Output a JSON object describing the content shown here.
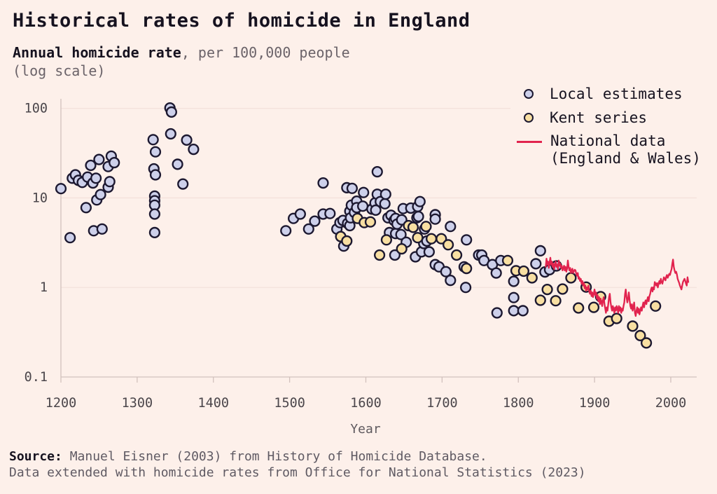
{
  "title": "Historical rates of homicide in England",
  "subtitle": {
    "lead": "Annual homicide rate",
    "rest": ", per 100,000 people",
    "line2": "(log scale)"
  },
  "legend": {
    "items": [
      {
        "label": "Local estimates",
        "marker": "circle",
        "color": "#cdd0ea"
      },
      {
        "label": "Kent series",
        "marker": "circle",
        "color": "#f8dfa2"
      },
      {
        "label_line1": "National data",
        "label_line2": "(England & Wales)",
        "marker": "line",
        "color": "#e1234e"
      }
    ]
  },
  "axes": {
    "x_label": "Year",
    "x_ticks": [
      1200,
      1300,
      1400,
      1500,
      1600,
      1700,
      1800,
      1900,
      2000
    ],
    "y_ticks": [
      {
        "value": 100,
        "label": "100"
      },
      {
        "value": 10,
        "label": "10"
      },
      {
        "value": 1,
        "label": "1"
      },
      {
        "value": 0.1,
        "label": "0.1"
      }
    ]
  },
  "source": {
    "label": "Source:",
    "line1": " Manuel Eisner (2003) from History of Homicide Database.",
    "line2": "Data extended with homicide rates from Office for National Statistics (2023)"
  },
  "colors": {
    "background": "#fdf0ea",
    "local_fill": "#cdd0ea",
    "kent_fill": "#f8dfa2",
    "marker_stroke": "#1c1830",
    "national_line": "#e1234e",
    "grid": "#f2dfd9",
    "axis": "#d2c1bd",
    "tick_text": "#4b464b"
  },
  "chart_data": {
    "type": "scatter",
    "title": "Historical rates of homicide in England",
    "ylabel": "Annual homicide rate, per 100,000 people (log scale)",
    "xlabel": "Year",
    "x_range": [
      1200,
      2034
    ],
    "y_range": [
      0.1,
      128
    ],
    "y_scale": "log",
    "grid": "horizontal-only",
    "legend_position": "top-right",
    "series": [
      {
        "name": "Local estimates",
        "type": "scatter",
        "points": [
          [
            1200,
            12.7
          ],
          [
            1212,
            3.6
          ],
          [
            1215,
            16.6
          ],
          [
            1219,
            18.1
          ],
          [
            1223,
            15.7
          ],
          [
            1228,
            14.9
          ],
          [
            1233,
            7.8
          ],
          [
            1235,
            17.1
          ],
          [
            1239,
            23.1
          ],
          [
            1242,
            14.7
          ],
          [
            1243,
            4.3
          ],
          [
            1246,
            16.6
          ],
          [
            1247,
            9.5
          ],
          [
            1250,
            26.9
          ],
          [
            1252,
            10.9
          ],
          [
            1254,
            4.5
          ],
          [
            1262,
            22.4
          ],
          [
            1262,
            13.2
          ],
          [
            1264,
            15.2
          ],
          [
            1266,
            29.3
          ],
          [
            1270,
            24.8
          ],
          [
            1321,
            44.8
          ],
          [
            1322,
            21.1
          ],
          [
            1323,
            10.5
          ],
          [
            1323,
            9.3
          ],
          [
            1323,
            8.3
          ],
          [
            1323,
            6.6
          ],
          [
            1323,
            4.1
          ],
          [
            1324,
            32.7
          ],
          [
            1324,
            18.1
          ],
          [
            1343,
            101
          ],
          [
            1345,
            91
          ],
          [
            1344,
            52
          ],
          [
            1353,
            23.8
          ],
          [
            1360,
            14.3
          ],
          [
            1365,
            44.3
          ],
          [
            1374,
            34.9
          ],
          [
            1495,
            4.3
          ],
          [
            1505,
            5.9
          ],
          [
            1514,
            6.6
          ],
          [
            1525,
            4.5
          ],
          [
            1533,
            5.5
          ],
          [
            1544,
            14.7
          ],
          [
            1544,
            6.6
          ],
          [
            1553,
            6.7
          ],
          [
            1562,
            4.5
          ],
          [
            1566,
            5.3
          ],
          [
            1570,
            5.6
          ],
          [
            1576,
            5.2
          ],
          [
            1571,
            2.9
          ],
          [
            1575,
            13.0
          ],
          [
            1579,
            7.1
          ],
          [
            1579,
            4.9
          ],
          [
            1580,
            6.0
          ],
          [
            1581,
            8.3
          ],
          [
            1582,
            12.8
          ],
          [
            1585,
            6.9
          ],
          [
            1588,
            9.2
          ],
          [
            1588,
            7.8
          ],
          [
            1596,
            8.1
          ],
          [
            1597,
            11.5
          ],
          [
            1608,
            7.5
          ],
          [
            1612,
            8.8
          ],
          [
            1613,
            7.3
          ],
          [
            1615,
            19.6
          ],
          [
            1615,
            11.0
          ],
          [
            1619,
            9.1
          ],
          [
            1625,
            8.6
          ],
          [
            1626,
            11.0
          ],
          [
            1629,
            6.0
          ],
          [
            1631,
            4.1
          ],
          [
            1633,
            6.4
          ],
          [
            1637,
            5.6
          ],
          [
            1638,
            2.3
          ],
          [
            1639,
            5.9
          ],
          [
            1639,
            4.0
          ],
          [
            1641,
            5.1
          ],
          [
            1646,
            3.9
          ],
          [
            1647,
            5.7
          ],
          [
            1649,
            7.6
          ],
          [
            1653,
            3.2
          ],
          [
            1659,
            7.7
          ],
          [
            1665,
            2.2
          ],
          [
            1667,
            6.0
          ],
          [
            1668,
            8.0
          ],
          [
            1669,
            6.2
          ],
          [
            1671,
            9.1
          ],
          [
            1673,
            2.5
          ],
          [
            1676,
            3.1
          ],
          [
            1677,
            4.5
          ],
          [
            1680,
            3.3
          ],
          [
            1683,
            2.5
          ],
          [
            1691,
            6.5
          ],
          [
            1691,
            5.8
          ],
          [
            1691,
            1.8
          ],
          [
            1696,
            1.7
          ],
          [
            1705,
            1.5
          ],
          [
            1711,
            4.8
          ],
          [
            1711,
            1.2
          ],
          [
            1729,
            1.7
          ],
          [
            1731,
            1.0
          ],
          [
            1732,
            3.4
          ],
          [
            1748,
            2.3
          ],
          [
            1752,
            2.3
          ],
          [
            1755,
            2.0
          ],
          [
            1766,
            1.8
          ],
          [
            1771,
            1.45
          ],
          [
            1772,
            0.52
          ],
          [
            1777,
            2.0
          ],
          [
            1794,
            1.17
          ],
          [
            1794,
            0.77
          ],
          [
            1794,
            0.55
          ],
          [
            1806,
            0.55
          ],
          [
            1823,
            1.84
          ],
          [
            1829,
            2.57
          ],
          [
            1835,
            1.49
          ],
          [
            1841,
            1.58
          ],
          [
            1850,
            1.74
          ]
        ]
      },
      {
        "name": "Kent series",
        "type": "scatter",
        "points": [
          [
            1567,
            3.7
          ],
          [
            1575,
            3.3
          ],
          [
            1589,
            5.9
          ],
          [
            1598,
            5.3
          ],
          [
            1606,
            5.4
          ],
          [
            1618,
            2.3
          ],
          [
            1627,
            3.4
          ],
          [
            1647,
            2.7
          ],
          [
            1656,
            4.9
          ],
          [
            1662,
            4.7
          ],
          [
            1668,
            3.6
          ],
          [
            1679,
            4.8
          ],
          [
            1686,
            3.5
          ],
          [
            1699,
            3.5
          ],
          [
            1708,
            3.0
          ],
          [
            1719,
            2.3
          ],
          [
            1732,
            1.63
          ],
          [
            1786,
            2.0
          ],
          [
            1797,
            1.54
          ],
          [
            1807,
            1.52
          ],
          [
            1818,
            1.28
          ],
          [
            1829,
            0.72
          ],
          [
            1838,
            0.95
          ],
          [
            1849,
            0.71
          ],
          [
            1858,
            0.96
          ],
          [
            1869,
            1.28
          ],
          [
            1879,
            0.59
          ],
          [
            1889,
            1.01
          ],
          [
            1899,
            0.6
          ],
          [
            1908,
            0.79
          ],
          [
            1919,
            0.42
          ],
          [
            1929,
            0.45
          ],
          [
            1950,
            0.37
          ],
          [
            1960,
            0.29
          ],
          [
            1968,
            0.24
          ],
          [
            1980,
            0.62
          ]
        ]
      },
      {
        "name": "National data (England & Wales)",
        "type": "line",
        "start_year": 1836,
        "annual_rates": [
          1.7,
          2.1,
          1.8,
          1.95,
          1.65,
          1.9,
          2.15,
          1.8,
          1.95,
          1.7,
          1.85,
          1.6,
          1.8,
          1.95,
          1.7,
          1.8,
          1.6,
          2.0,
          1.75,
          1.85,
          1.65,
          1.75,
          1.55,
          1.65,
          1.75,
          1.55,
          1.7,
          1.5,
          1.62,
          2.0,
          1.7,
          1.55,
          1.65,
          1.45,
          1.55,
          1.62,
          1.45,
          1.52,
          1.58,
          1.55,
          1.42,
          1.35,
          1.45,
          1.25,
          1.3,
          1.18,
          1.25,
          1.1,
          1.18,
          1.05,
          1.12,
          0.98,
          1.05,
          0.92,
          1.0,
          0.95,
          1.05,
          0.9,
          0.85,
          0.92,
          0.8,
          0.88,
          0.78,
          0.85,
          0.95,
          0.82,
          0.88,
          0.75,
          0.82,
          0.7,
          0.78,
          0.65,
          0.75,
          0.68,
          0.62,
          0.72,
          0.78,
          0.65,
          0.58,
          0.52,
          0.6,
          0.55,
          0.65,
          0.78,
          0.85,
          0.68,
          0.6,
          0.55,
          0.62,
          0.58,
          0.52,
          0.6,
          0.55,
          0.62,
          0.58,
          0.52,
          0.62,
          0.55,
          0.6,
          0.52,
          0.58,
          0.55,
          0.62,
          0.68,
          0.85,
          0.95,
          0.78,
          0.68,
          0.75,
          0.88,
          0.72,
          0.62,
          0.58,
          0.65,
          0.55,
          0.6,
          0.68,
          0.52,
          0.48,
          0.55,
          0.6,
          0.52,
          0.58,
          0.5,
          0.55,
          0.6,
          0.55,
          0.62,
          0.68,
          0.6,
          0.68,
          0.72,
          0.65,
          0.72,
          0.78,
          0.7,
          0.8,
          0.85,
          0.95,
          1.0,
          0.9,
          1.0,
          0.95,
          1.15,
          1.1,
          1.05,
          1.12,
          1.0,
          1.1,
          1.18,
          1.1,
          1.25,
          1.15,
          1.1,
          1.2,
          1.3,
          1.25,
          1.2,
          1.32,
          1.38,
          1.28,
          1.35,
          1.42,
          1.38,
          1.5,
          1.6,
          1.85,
          2.05,
          1.7,
          1.55,
          1.45,
          1.5,
          1.4,
          1.25,
          1.18,
          1.12,
          1.05,
          1.0,
          0.95,
          1.05,
          1.15,
          1.2,
          1.25,
          1.18,
          1.1,
          1.05,
          1.3,
          1.15
        ]
      }
    ]
  }
}
